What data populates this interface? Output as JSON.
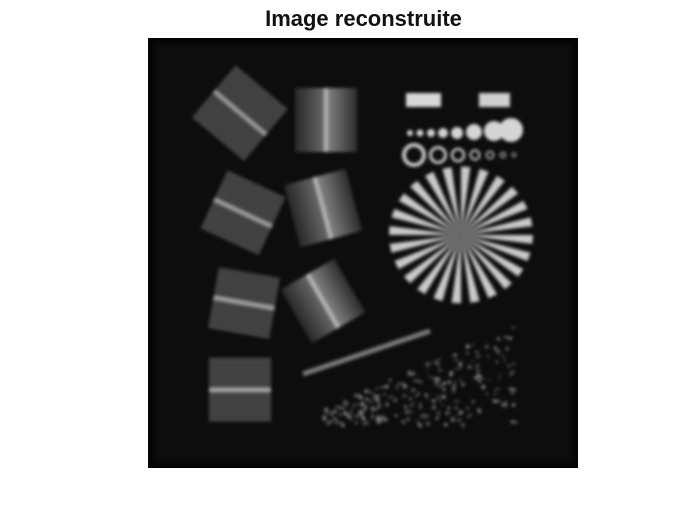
{
  "figure": {
    "title": "Image reconstruite"
  }
}
